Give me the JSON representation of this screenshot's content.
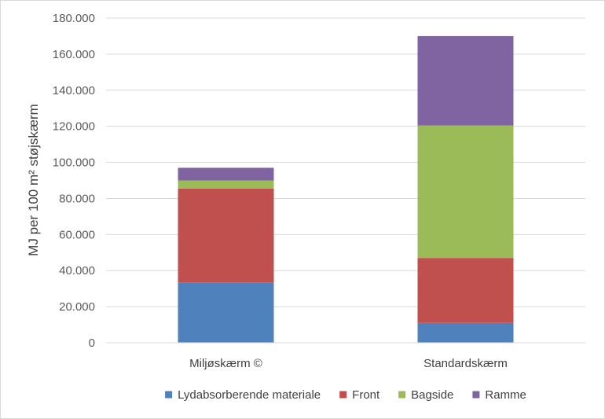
{
  "chart_data": {
    "type": "bar",
    "stacked": true,
    "categories": [
      "Miljøskærm ©",
      "Standardskærm"
    ],
    "series": [
      {
        "name": "Lydabsorberende materiale",
        "color": "#4f81bd",
        "values": [
          33500,
          11000
        ]
      },
      {
        "name": "Front",
        "color": "#c0504d",
        "values": [
          52000,
          36000
        ]
      },
      {
        "name": "Bagside",
        "color": "#9bbb59",
        "values": [
          4500,
          73500
        ]
      },
      {
        "name": "Ramme",
        "color": "#8064a2",
        "values": [
          7000,
          49500
        ]
      }
    ],
    "title": "",
    "xlabel": "",
    "ylabel": "MJ per 100 m² støjskærm",
    "ylim": [
      0,
      180000
    ],
    "yticks": [
      0,
      20000,
      40000,
      60000,
      80000,
      100000,
      120000,
      140000,
      160000,
      180000
    ],
    "ytick_labels": [
      "0",
      "20.000",
      "40.000",
      "60.000",
      "80.000",
      "100.000",
      "120.000",
      "140.000",
      "160.000",
      "180.000"
    ],
    "grid": true,
    "legend_position": "bottom"
  }
}
